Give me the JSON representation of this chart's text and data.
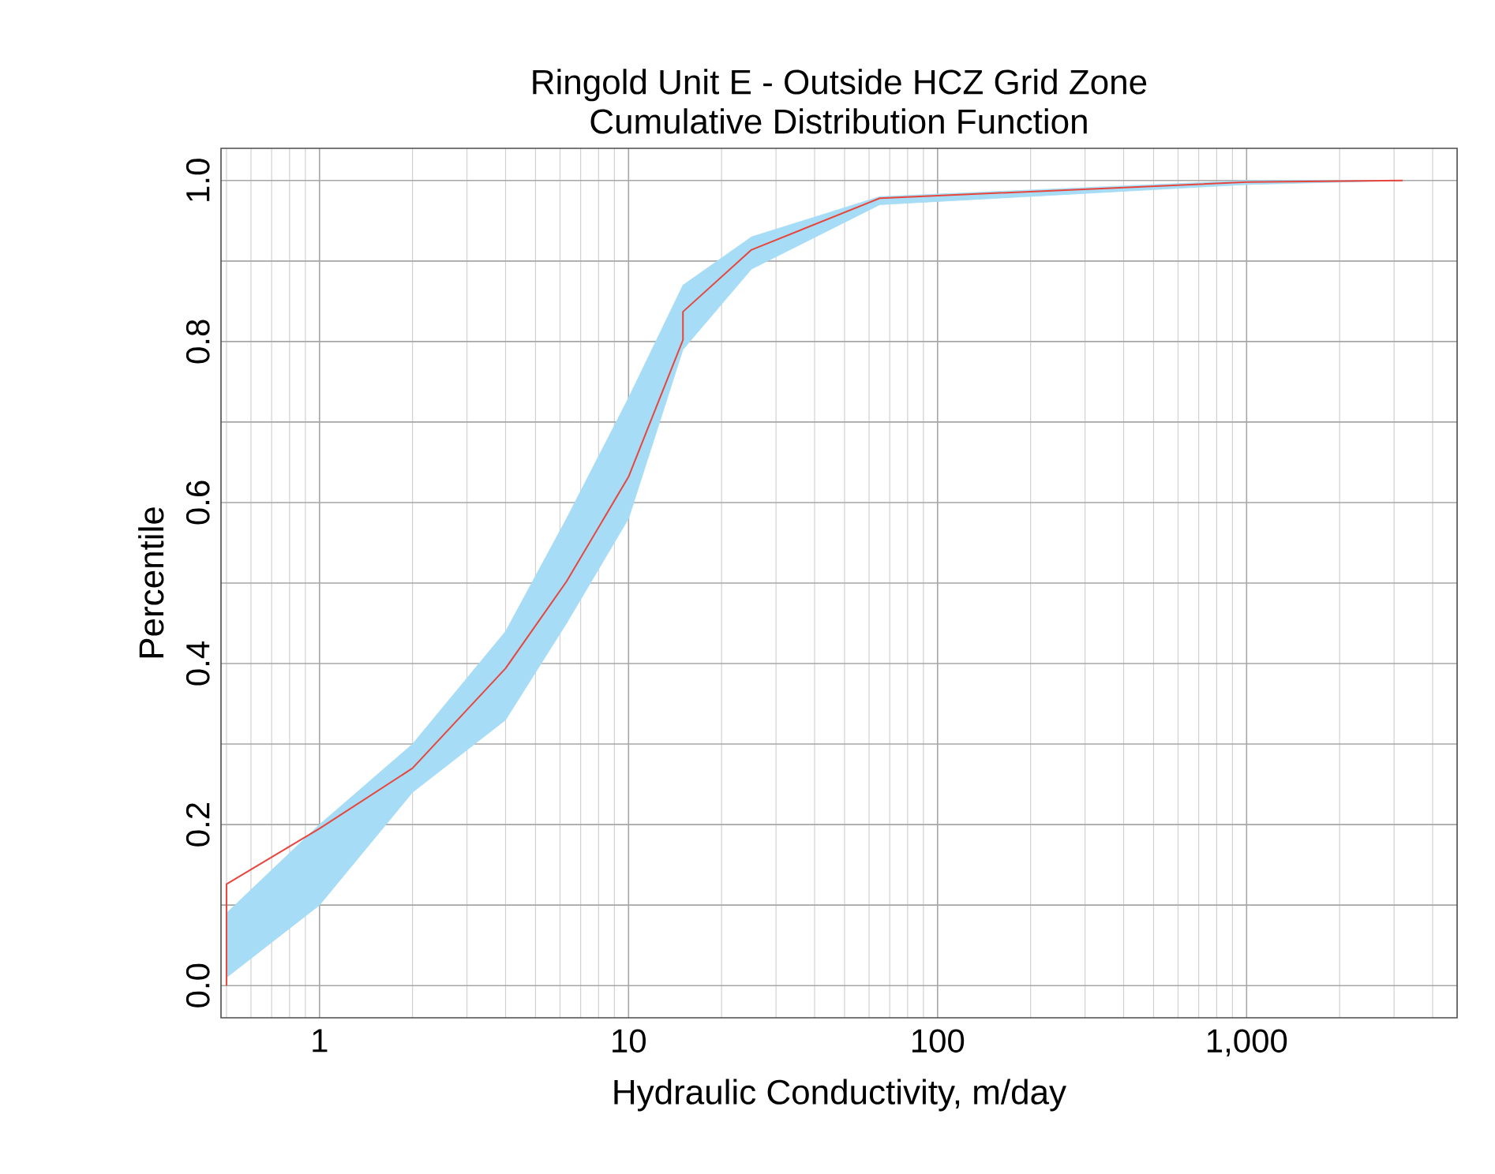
{
  "chart_data": {
    "type": "line",
    "title": "Ringold Unit E - Outside HCZ Grid Zone",
    "subtitle": "Cumulative Distribution Function",
    "xlabel": "Hydraulic Conductivity, m/day",
    "ylabel": "Percentile",
    "log": "x",
    "xlim": [
      0.48,
      4800
    ],
    "ylim": [
      -0.04,
      1.04
    ],
    "xticks": [
      1,
      10,
      100,
      {
        "value": 1000,
        "label": "1,000"
      }
    ],
    "yticks": [
      {
        "value": 0,
        "label": "0.0"
      },
      {
        "value": 0.1,
        "label": null
      },
      {
        "value": 0.2,
        "label": "0.2"
      },
      {
        "value": 0.3,
        "label": null
      },
      {
        "value": 0.4,
        "label": "0.4"
      },
      {
        "value": 0.5,
        "label": null
      },
      {
        "value": 0.6,
        "label": "0.6"
      },
      {
        "value": 0.7,
        "label": null
      },
      {
        "value": 0.8,
        "label": "0.8"
      },
      {
        "value": 0.9,
        "label": null
      },
      {
        "value": 1.0,
        "label": "1.0"
      }
    ],
    "grid": true,
    "marker": "none",
    "line_style": "solid",
    "series": [
      {
        "color": "#e8453c",
        "x": [
          0.5,
          0.5,
          1,
          2,
          4,
          6.3,
          10,
          15,
          15,
          25,
          65,
          1000,
          3200
        ],
        "values": [
          0.0,
          0.126,
          0.195,
          0.27,
          0.394,
          0.502,
          0.632,
          0.802,
          0.837,
          0.914,
          0.978,
          0.998,
          1.0
        ],
        "lower": [
          0.01,
          0.01,
          0.1,
          0.24,
          0.33,
          0.45,
          0.58,
          0.79,
          0.79,
          0.89,
          0.97,
          0.995,
          1.0
        ],
        "upper": [
          0.09,
          0.09,
          0.2,
          0.3,
          0.44,
          0.58,
          0.73,
          0.87,
          0.87,
          0.93,
          0.98,
          1.0,
          1.0
        ]
      }
    ]
  }
}
